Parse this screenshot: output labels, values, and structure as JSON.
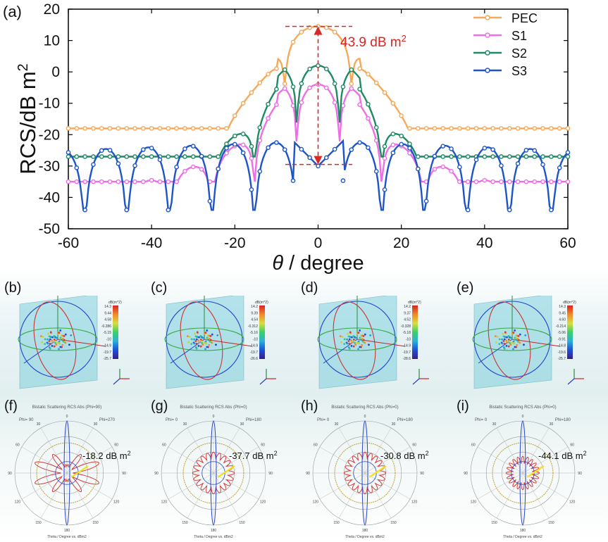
{
  "labels": {
    "a": "(a)",
    "b": "(b)",
    "c": "(c)",
    "d": "(d)",
    "e": "(e)",
    "f": "(f)",
    "g": "(g)",
    "h": "(h)",
    "i": "(i)"
  },
  "chart_data": {
    "type": "line",
    "xlabel_symbol": "θ",
    "xlabel_text": " / degree",
    "ylabel": "RCS/dB m",
    "ylabel_sup": "2",
    "xlim": [
      -60,
      60
    ],
    "ylim": [
      -50,
      20
    ],
    "xticks": [
      "-60",
      "-40",
      "-20",
      "0",
      "20",
      "40",
      "60"
    ],
    "yticks": [
      "20",
      "10",
      "0",
      "-10",
      "-20",
      "-30",
      "-40",
      "-50"
    ],
    "annotation": {
      "text": "43.9 dB m",
      "sup": "2",
      "top": 14.5,
      "bottom": -29.5
    },
    "series": [
      {
        "name": "PEC",
        "color": "#f5a95a",
        "peak": 14.5,
        "floor": -14.5,
        "nulls": -18,
        "decay": 0.32
      },
      {
        "name": "S1",
        "color": "#ee6ee6",
        "peak": -4,
        "floor": -24,
        "nulls": -35,
        "decay": 0.28
      },
      {
        "name": "S2",
        "color": "#1f8a63",
        "peak": 2,
        "floor": -20,
        "nulls": -27,
        "decay": 0.35
      },
      {
        "name": "S3",
        "color": "#1e54c8",
        "peak": -29.5,
        "floor": -22,
        "nulls": -43,
        "decay": 0.0
      }
    ]
  },
  "cb_panels": [
    {
      "key": "b",
      "unit": "dB(m^2)",
      "ticks": [
        "14.3",
        "9.44",
        "4.58",
        "-0.286",
        "-5.15",
        "-10",
        "-14.9",
        "-19.7",
        "-25.7"
      ]
    },
    {
      "key": "c",
      "unit": "dB(m^2)",
      "ticks": [
        "14.2",
        "9.39",
        "4.54",
        "-0.312",
        "-5.16",
        "-10",
        "-14.9",
        "-19.7",
        "-26.6"
      ]
    },
    {
      "key": "d",
      "unit": "dB(m^2)",
      "ticks": [
        "14.2",
        "9.37",
        "4.52",
        "-0.328",
        "-5.18",
        "-10",
        "-14.9",
        "-19.7",
        "-28.6"
      ]
    },
    {
      "key": "e",
      "unit": "dB(m^2)",
      "ticks": [
        "14.3",
        "9.45",
        "4.60",
        "-0.214",
        "-5.06",
        "-9.91",
        "-14.8",
        "-19.6",
        "-25.7"
      ]
    }
  ],
  "polar_panels": [
    {
      "key": "f",
      "title": "Bistatic Scattering RCS Abs (Phi=90)",
      "value": "-18.2 dB m",
      "sup": "2",
      "xlabel": "Theta / Degree vs. dBm2",
      "phi_left": "Phi= 90",
      "phi_right": "Phi=270"
    },
    {
      "key": "g",
      "title": "Bistatic Scattering RCS Abs (Phi=0)",
      "value": "-37.7 dB m",
      "sup": "2",
      "xlabel": "Theta / Degree vs. dBm2",
      "phi_left": "Phi= 0",
      "phi_right": "Phi=180"
    },
    {
      "key": "h",
      "title": "Bistatic Scattering RCS Abs (Phi=0)",
      "value": "-30.8 dB m",
      "sup": "2",
      "xlabel": "Theta / Degree vs. dBm2",
      "phi_left": "Phi= 0",
      "phi_right": "Phi=180"
    },
    {
      "key": "i",
      "title": "Bistatic Scattering RCS Abs (Phi=0)",
      "value": "-44.1 dB m",
      "sup": "2",
      "xlabel": "Theta / Degree vs. dBm2",
      "phi_left": "Phi= 0",
      "phi_right": "Phi=180"
    }
  ],
  "polar_angles": [
    "0",
    "30",
    "60",
    "90",
    "120",
    "150",
    "180",
    "150",
    "120",
    "90",
    "60",
    "30"
  ]
}
